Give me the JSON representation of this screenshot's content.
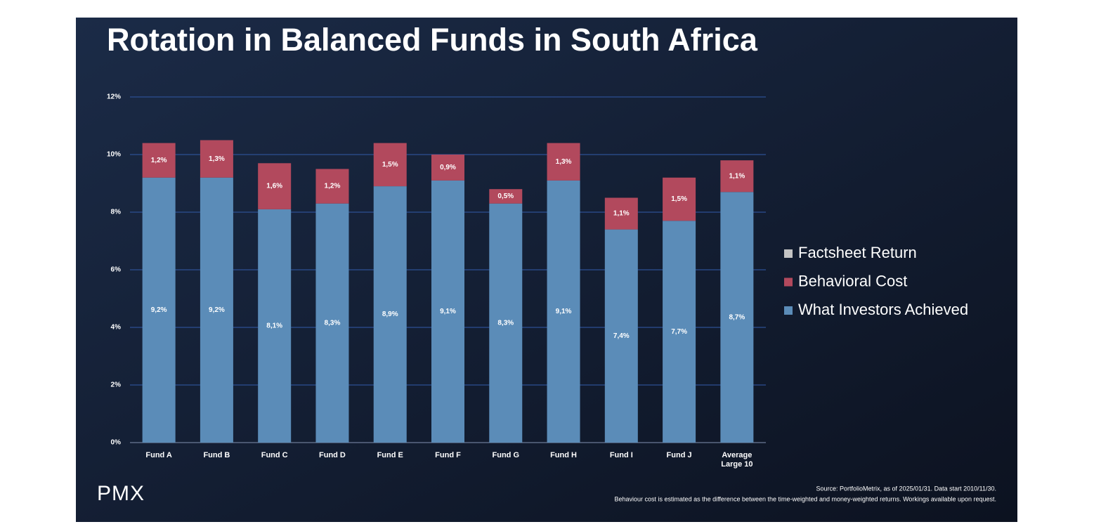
{
  "chart_data": {
    "type": "stacked-bar",
    "title": "Rotation in Balanced Funds in South Africa",
    "categories": [
      "Fund A",
      "Fund B",
      "Fund C",
      "Fund D",
      "Fund E",
      "Fund F",
      "Fund G",
      "Fund H",
      "Fund I",
      "Fund J",
      "Average Large 10"
    ],
    "series": [
      {
        "name": "Factsheet Return",
        "color": "#c4c4c4"
      },
      {
        "name": "Behavioral Cost",
        "color": "#b2495d",
        "values": [
          1.2,
          1.3,
          1.6,
          1.2,
          1.5,
          0.9,
          0.5,
          1.3,
          1.1,
          1.5,
          1.1
        ],
        "value_labels": [
          "1,2%",
          "1,3%",
          "1,6%",
          "1,2%",
          "1,5%",
          "0,9%",
          "0,5%",
          "1,3%",
          "1,1%",
          "1,5%",
          "1,1%"
        ]
      },
      {
        "name": "What Investors Achieved",
        "color": "#5b8cb8",
        "values": [
          9.2,
          9.2,
          8.1,
          8.3,
          8.9,
          9.1,
          8.3,
          9.1,
          7.4,
          7.7,
          8.7
        ],
        "value_labels": [
          "9,2%",
          "9,2%",
          "8,1%",
          "8,3%",
          "8,9%",
          "9,1%",
          "8,3%",
          "9,1%",
          "7,4%",
          "7,7%",
          "8,7%"
        ]
      }
    ],
    "stack_order": [
      "What Investors Achieved",
      "Behavioral Cost"
    ],
    "ylim": [
      0,
      12
    ],
    "yticks": [
      {
        "value": 0,
        "label": "0%"
      },
      {
        "value": 2,
        "label": "2%"
      },
      {
        "value": 4,
        "label": "4%"
      },
      {
        "value": 6,
        "label": "6%"
      },
      {
        "value": 8,
        "label": "8%"
      },
      {
        "value": 10,
        "label": "10%"
      },
      {
        "value": 12,
        "label": "12%"
      }
    ],
    "grid": true,
    "legend": "right",
    "logo": "PMX",
    "source": "Source: PortfolioMetrix, as of 2025/01/31. Data start 2010/11/30.",
    "footnote": "Behaviour cost is estimated as the difference between the time-weighted and money-weighted returns. Workings available upon request."
  }
}
